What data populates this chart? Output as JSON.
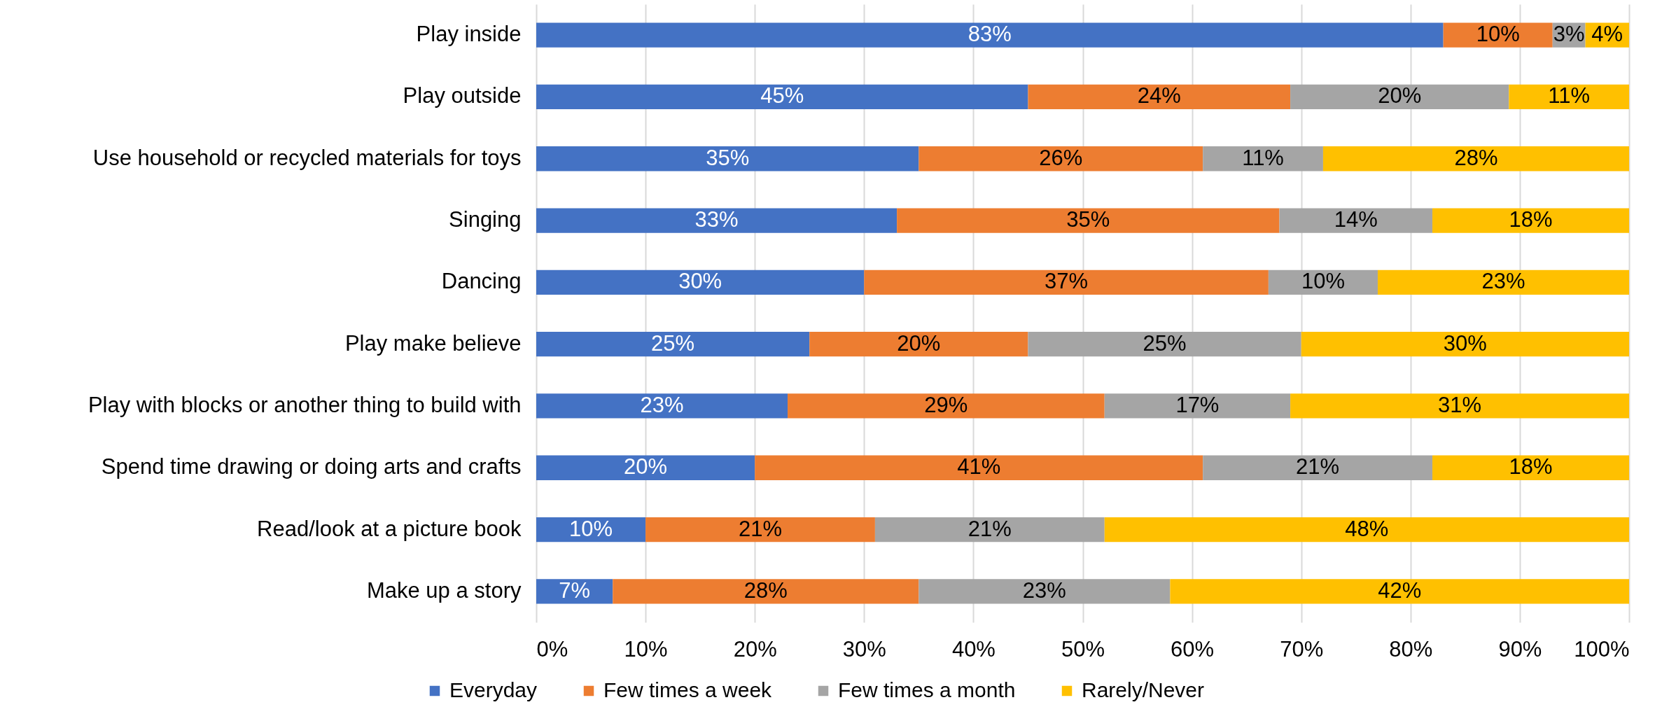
{
  "chart_data": {
    "type": "bar",
    "orientation": "horizontal",
    "stacked": true,
    "categories": [
      "Play inside",
      "Play outside",
      "Use household or recycled materials for toys",
      "Singing",
      "Dancing",
      "Play make believe",
      "Play with blocks or another thing to build with",
      "Spend time drawing or doing arts and crafts",
      "Read/look at a picture book",
      "Make up a story"
    ],
    "series": [
      {
        "name": "Everyday",
        "color": "#4472c4",
        "values": [
          83,
          45,
          35,
          33,
          30,
          25,
          23,
          20,
          10,
          7
        ],
        "value_labels": [
          "83%",
          "45%",
          "35%",
          "33%",
          "30%",
          "25%",
          "23%",
          "20%",
          "10%",
          "7%"
        ]
      },
      {
        "name": "Few times a week",
        "color": "#ed7d31",
        "values": [
          10,
          24,
          26,
          35,
          37,
          20,
          29,
          41,
          21,
          28
        ],
        "value_labels": [
          "10%",
          "24%",
          "26%",
          "35%",
          "37%",
          "20%",
          "29%",
          "41%",
          "21%",
          "28%"
        ]
      },
      {
        "name": "Few times a month",
        "color": "#a5a5a5",
        "values": [
          3,
          20,
          11,
          14,
          10,
          25,
          17,
          21,
          21,
          23
        ],
        "value_labels": [
          "3%",
          "20%",
          "11%",
          "14%",
          "10%",
          "25%",
          "17%",
          "21%",
          "21%",
          "23%"
        ]
      },
      {
        "name": "Rarely/Never",
        "color": "#ffc000",
        "values": [
          4,
          11,
          28,
          18,
          23,
          30,
          31,
          18,
          48,
          42
        ],
        "value_labels": [
          "4%",
          "11%",
          "28%",
          "18%",
          "23%",
          "30%",
          "31%",
          "18%",
          "48%",
          "42%"
        ]
      }
    ],
    "xlim": [
      0,
      100
    ],
    "xticks": [
      {
        "value": 0,
        "label": "0%"
      },
      {
        "value": 10,
        "label": "10%"
      },
      {
        "value": 20,
        "label": "20%"
      },
      {
        "value": 30,
        "label": "30%"
      },
      {
        "value": 40,
        "label": "40%"
      },
      {
        "value": 50,
        "label": "50%"
      },
      {
        "value": 60,
        "label": "60%"
      },
      {
        "value": 70,
        "label": "70%"
      },
      {
        "value": 80,
        "label": "80%"
      },
      {
        "value": 90,
        "label": "90%"
      },
      {
        "value": 100,
        "label": "100%"
      }
    ],
    "grid": "x",
    "legend": "bottom"
  }
}
